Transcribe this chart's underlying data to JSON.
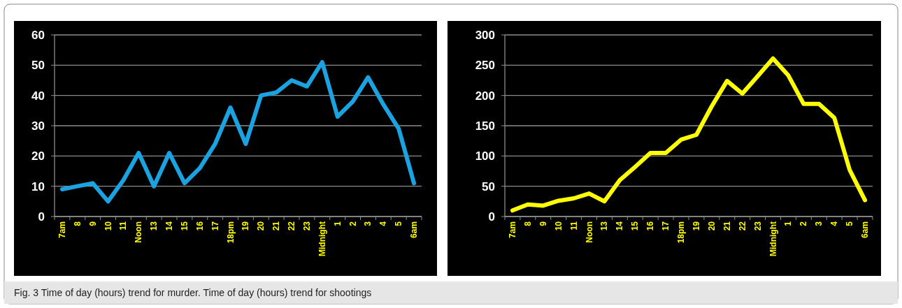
{
  "chart_data": [
    {
      "type": "line",
      "categories": [
        "7am",
        "8",
        "9",
        "10",
        "11",
        "Noon",
        "13",
        "14",
        "15",
        "16",
        "17",
        "18pm",
        "19",
        "20",
        "21",
        "22",
        "23",
        "Midnight",
        "1",
        "2",
        "3",
        "4",
        "5",
        "6am"
      ],
      "series": [
        {
          "color": "#1aa3e0",
          "values": [
            9,
            10,
            11,
            5,
            12,
            21,
            10,
            21,
            11,
            16,
            24,
            36,
            24,
            40,
            41,
            45,
            43,
            51,
            33,
            38,
            46,
            37,
            29,
            11
          ]
        }
      ],
      "ylim": [
        0,
        60
      ],
      "yticks": [
        0,
        10,
        20,
        30,
        40,
        50,
        60
      ],
      "grid": "y",
      "marker": "none",
      "line_style": "solid",
      "annotations": [
        "Fig. 3  Time of day (hours) trend for murder. Time of day (hours) trend for shootings"
      ]
    },
    {
      "type": "line",
      "categories": [
        "7am",
        "8",
        "9",
        "10",
        "11",
        "Noon",
        "13",
        "14",
        "15",
        "16",
        "17",
        "18pm",
        "19",
        "20",
        "21",
        "22",
        "23",
        "Midnight",
        "1",
        "2",
        "3",
        "4",
        "5",
        "6am"
      ],
      "series": [
        {
          "color": "#ffff00",
          "values": [
            10,
            20,
            18,
            26,
            30,
            38,
            25,
            60,
            82,
            105,
            105,
            127,
            135,
            182,
            224,
            203,
            232,
            261,
            233,
            186,
            186,
            163,
            77,
            27
          ]
        }
      ],
      "ylim": [
        0,
        300
      ],
      "yticks": [
        0,
        50,
        100,
        150,
        200,
        250,
        300
      ],
      "grid": "y",
      "marker": "none",
      "line_style": "solid"
    }
  ]
}
